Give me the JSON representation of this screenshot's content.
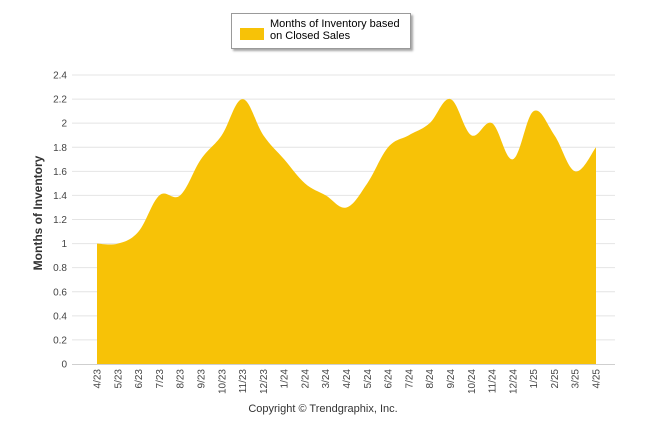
{
  "chart_data": {
    "type": "area",
    "categories": [
      "4/23",
      "5/23",
      "6/23",
      "7/23",
      "8/23",
      "9/23",
      "10/23",
      "11/23",
      "12/23",
      "1/24",
      "2/24",
      "3/24",
      "4/24",
      "5/24",
      "6/24",
      "7/24",
      "8/24",
      "9/24",
      "10/24",
      "11/24",
      "12/24",
      "1/25",
      "2/25",
      "3/25",
      "4/25"
    ],
    "series": [
      {
        "name": "Months of Inventory based on Closed Sales",
        "values": [
          1.0,
          1.0,
          1.1,
          1.4,
          1.4,
          1.7,
          1.9,
          2.2,
          1.9,
          1.7,
          1.5,
          1.4,
          1.3,
          1.5,
          1.8,
          1.9,
          2.0,
          2.2,
          1.9,
          2.0,
          1.7,
          2.1,
          1.9,
          1.6,
          1.8
        ],
        "color": "#f7c207"
      }
    ],
    "ylabel": "Months of Inventory",
    "xlabel": "",
    "ylim": [
      0,
      2.4
    ],
    "yticks": [
      "0",
      "0.2",
      "0.4",
      "0.6",
      "0.8",
      "1",
      "1.2",
      "1.4",
      "1.6",
      "1.8",
      "2",
      "2.2",
      "2.4"
    ],
    "grid": true,
    "legend": "top-center"
  },
  "footer": {
    "copyright": "Copyright © Trendgraphix, Inc."
  }
}
